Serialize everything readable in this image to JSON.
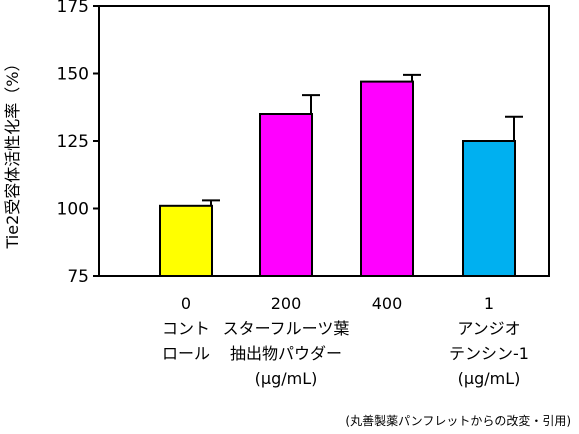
{
  "chart_data": {
    "type": "bar",
    "ylabel": "Tie2受容体活性化率（%）",
    "ylim": [
      75,
      175
    ],
    "yticks": [
      75,
      100,
      125,
      150,
      175
    ],
    "categories": [
      {
        "lines": [
          "0",
          "コント",
          "ロール"
        ]
      },
      {
        "lines": [
          "200",
          "スターフルーツ葉",
          "抽出物パウダー",
          "(μg/mL)"
        ]
      },
      {
        "lines": [
          "400"
        ]
      },
      {
        "lines": [
          "1",
          "アンジオ",
          "テンシン-1",
          "(μg/mL)"
        ]
      }
    ],
    "values": [
      101,
      135,
      147,
      125
    ],
    "errors": [
      2,
      7,
      2.5,
      9
    ],
    "colors": [
      "#ffff00",
      "#ff00ff",
      "#ff00ff",
      "#00b0f0"
    ]
  },
  "source_note": "(丸善製薬パンフレットからの改変・引用)"
}
